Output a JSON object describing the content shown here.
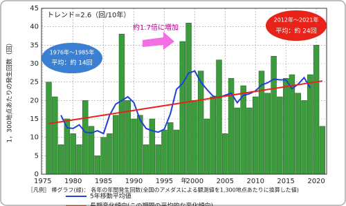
{
  "chart_data": {
    "type": "bar",
    "x": [
      1976,
      1977,
      1978,
      1979,
      1980,
      1981,
      1982,
      1983,
      1984,
      1985,
      1986,
      1987,
      1988,
      1989,
      1990,
      1991,
      1992,
      1993,
      1994,
      1995,
      1996,
      1997,
      1998,
      1999,
      2000,
      2001,
      2002,
      2003,
      2004,
      2005,
      2006,
      2007,
      2008,
      2009,
      2010,
      2011,
      2012,
      2013,
      2014,
      2015,
      2016,
      2017,
      2018,
      2019,
      2020,
      2021
    ],
    "values": [
      25,
      21,
      8,
      15,
      11,
      8,
      20,
      13,
      5,
      10,
      11,
      16,
      38,
      20,
      15,
      16,
      8,
      15,
      8,
      12,
      14,
      12,
      36,
      41,
      20,
      28,
      15,
      21,
      31,
      11,
      26,
      18,
      24,
      18,
      21,
      28,
      22,
      32,
      21,
      26,
      27,
      22,
      20,
      27,
      35,
      13
    ],
    "color": "#3c9b3c",
    "lines": [
      {
        "name": "5年移動平均値",
        "color": "#1f3fd6",
        "x": [
          1978,
          1979,
          1980,
          1981,
          1982,
          1983,
          1984,
          1985,
          1986,
          1987,
          1988,
          1989,
          1990,
          1991,
          1992,
          1993,
          1994,
          1995,
          1996,
          1997,
          1998,
          1999,
          2000,
          2001,
          2002,
          2003,
          2004,
          2005,
          2006,
          2007,
          2008,
          2009,
          2010,
          2011,
          2012,
          2013,
          2014,
          2015,
          2016,
          2017,
          2018,
          2019
        ],
        "values": [
          16,
          12.6,
          12.4,
          13.4,
          11.4,
          11.2,
          11.8,
          11,
          16,
          19,
          20,
          21,
          19.4,
          14.8,
          12.4,
          11.8,
          11.4,
          12.2,
          16.4,
          23,
          24.6,
          27.4,
          28,
          25,
          23,
          21.2,
          20.8,
          21.4,
          22,
          19.4,
          21.4,
          21.8,
          22.6,
          24.2,
          24.8,
          25.8,
          25.6,
          25.6,
          23.2,
          24.4,
          26.2,
          23.4
        ]
      },
      {
        "name": "長期変化傾向(この期間の平均的な変化傾向)",
        "color": "#e8231a",
        "x": [
          1976,
          2021
        ],
        "values": [
          13.7,
          25.3
        ]
      }
    ],
    "xlim": [
      1974.8,
      2021.7
    ],
    "xticks": [
      1975,
      1980,
      1985,
      1990,
      1995,
      2000,
      2005,
      2010,
      2015,
      2020
    ],
    "ylim": [
      0,
      45
    ],
    "yticks": [
      0,
      5,
      10,
      15,
      20,
      25,
      30,
      35,
      40,
      45
    ],
    "grid": true,
    "ylabel": "1，300地点あたりの発生回数（回）",
    "xlabel": "年",
    "trend_note": "トレンド=2.6（回/10年）",
    "increase_note": "約1.7倍に増加",
    "early_period": "1976年～1985年",
    "early_average": "平均：約 14回",
    "late_period": "2012年～2021年",
    "late_average": "平均：約 24回",
    "legend_bar": "［凡例］ 棒グラフ(緑)： 各年の年間発生回数(全国のアメダスによる観測値を1,300地点あたりに換算した値)"
  }
}
